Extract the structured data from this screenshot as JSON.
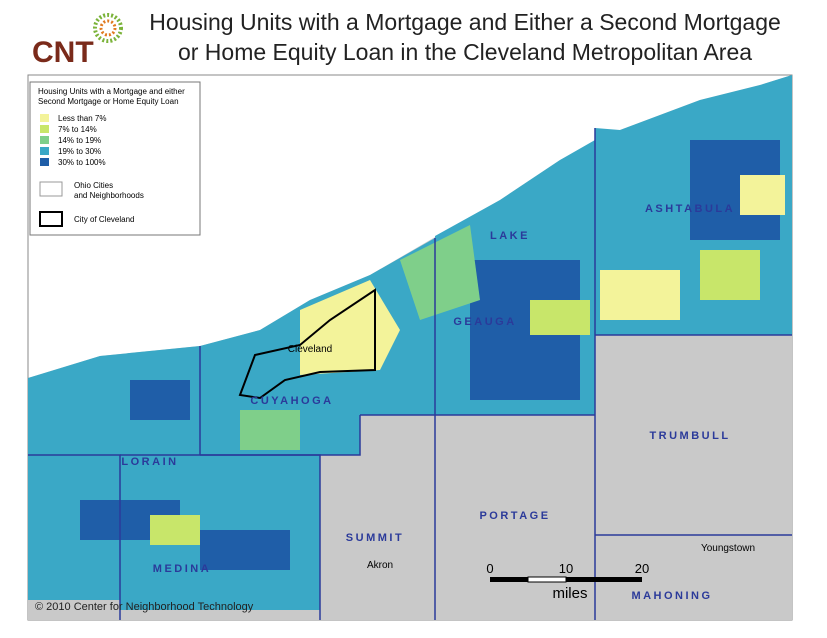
{
  "header": {
    "logo": "CNT",
    "title_lines": [
      "Housing Units with a Mortgage and Either a Second Mortgage",
      "or Home Equity Loan in the Cleveland Metropolitan Area"
    ]
  },
  "legend": {
    "title_lines": [
      "Housing Units with a Mortgage and either",
      "Second Mortgage or Home Equity Loan"
    ],
    "items": [
      {
        "label": "Less than 7%",
        "color": "#f3f39a"
      },
      {
        "label": "7% to 14%",
        "color": "#c8e66a"
      },
      {
        "label": "14% to 19%",
        "color": "#7fcf8a"
      },
      {
        "label": "19% to 30%",
        "color": "#3aa8c6"
      },
      {
        "label": "30% to 100%",
        "color": "#1f5ea8"
      }
    ],
    "outlines": [
      {
        "label_lines": [
          "Ohio Cities",
          "and Neighborhoods"
        ]
      },
      {
        "label": "City of Cleveland"
      }
    ]
  },
  "counties": [
    "LAKE",
    "ASHTABULA",
    "GEAUGA",
    "CUYAHOGA",
    "LORAIN",
    "MEDINA",
    "SUMMIT",
    "PORTAGE",
    "TRUMBULL",
    "MAHONING"
  ],
  "cities": [
    "Cleveland",
    "Akron",
    "Youngstown"
  ],
  "scale_bar": {
    "ticks": [
      0,
      10,
      20
    ],
    "unit": "miles"
  },
  "copyright": "© 2010 Center for Neighborhood Technology"
}
